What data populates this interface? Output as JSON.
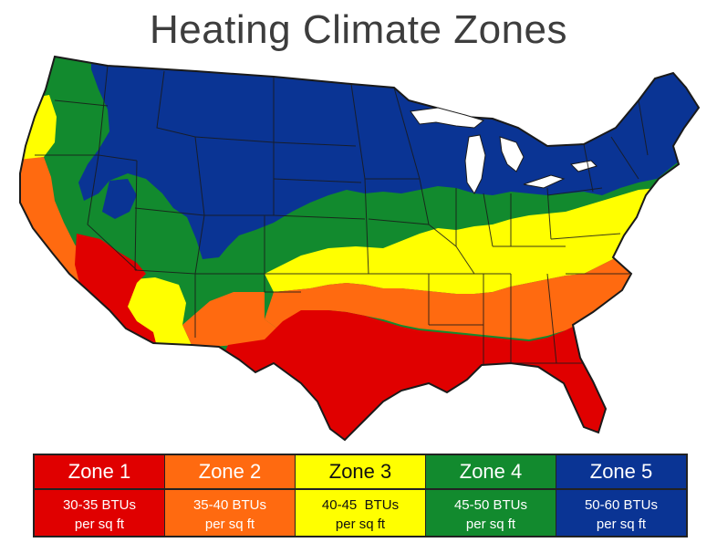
{
  "title": "Heating Climate Zones",
  "colors": {
    "zone1": "#e00000",
    "zone2": "#ff6a10",
    "zone3": "#ffff00",
    "zone4": "#128a2e",
    "zone5": "#0a3494",
    "water": "#ffffff",
    "border": "#1a1a1a"
  },
  "legend": [
    {
      "name": "Zone 1",
      "range": "30-35 BTUs",
      "unit": "per sq ft",
      "color": "#e00000",
      "text": "#ffffff"
    },
    {
      "name": "Zone 2",
      "range": "35-40 BTUs",
      "unit": "per sq ft",
      "color": "#ff6a10",
      "text": "#ffffff"
    },
    {
      "name": "Zone 3",
      "range": "40-45  BTUs",
      "unit": "per sq ft",
      "color": "#ffff00",
      "text": "#111111"
    },
    {
      "name": "Zone 4",
      "range": "45-50 BTUs",
      "unit": "per sq ft",
      "color": "#128a2e",
      "text": "#ffffff"
    },
    {
      "name": "Zone 5",
      "range": "50-60 BTUs",
      "unit": "per sq ft",
      "color": "#0a3494",
      "text": "#ffffff"
    }
  ]
}
